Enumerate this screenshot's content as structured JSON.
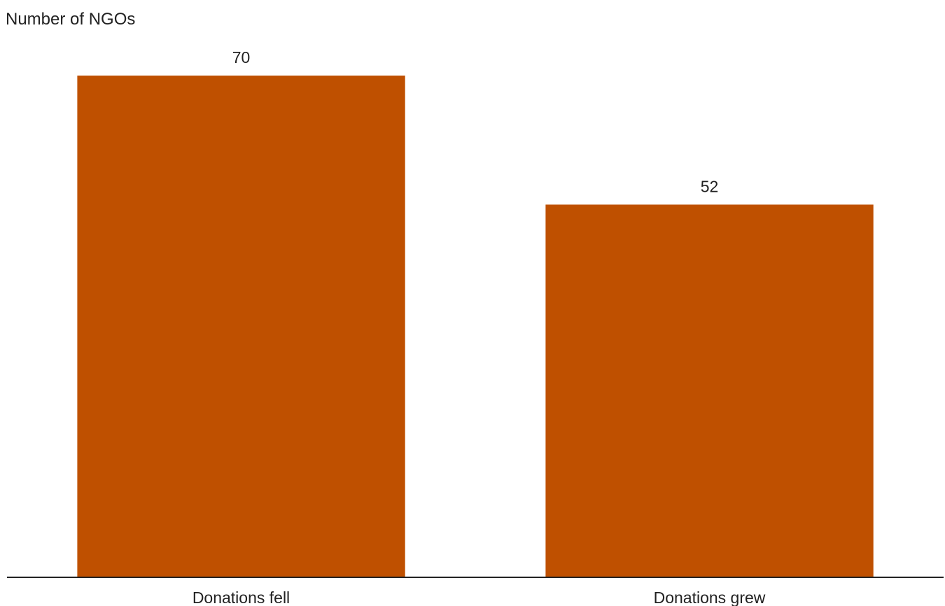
{
  "chart_data": {
    "type": "bar",
    "title": "",
    "ylabel": "Number of NGOs",
    "xlabel": "",
    "categories": [
      "Donations fell",
      "Donations grew"
    ],
    "values": [
      70,
      52
    ],
    "data_labels": [
      "70",
      "52"
    ],
    "ylim": [
      0,
      70
    ],
    "grid": false,
    "legend": "none",
    "bar_color": "#bf5000",
    "axis_color": "#222222"
  }
}
